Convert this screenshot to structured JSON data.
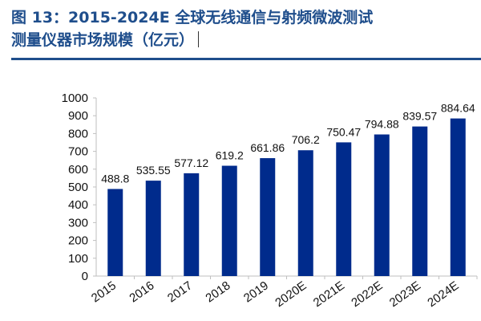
{
  "header": {
    "title_line1": "图 13：2015-2024E 全球无线通信与射频微波测试",
    "title_line2": "测量仪器市场规模（亿元）"
  },
  "colors": {
    "bar": "#002b8c",
    "title": "#1f4e8c",
    "axis": "#bfbfbf"
  },
  "chart_data": {
    "type": "bar",
    "title": "图 13：2015-2024E 全球无线通信与射频微波测试测量仪器市场规模（亿元）",
    "xlabel": "",
    "ylabel": "",
    "categories": [
      "2015",
      "2016",
      "2017",
      "2018",
      "2019",
      "2020E",
      "2021E",
      "2022E",
      "2023E",
      "2024E"
    ],
    "values": [
      488.8,
      535.55,
      577.12,
      619.2,
      661.86,
      706.2,
      750.47,
      794.88,
      839.57,
      884.64
    ],
    "value_labels": [
      "488.8",
      "535.55",
      "577.12",
      "619.2",
      "661.86",
      "706.2",
      "750.47",
      "794.88",
      "839.57",
      "884.64"
    ],
    "ylim": [
      0,
      1000
    ],
    "yticks": [
      0,
      100,
      200,
      300,
      400,
      500,
      600,
      700,
      800,
      900,
      1000
    ],
    "grid": false,
    "legend": "none"
  }
}
